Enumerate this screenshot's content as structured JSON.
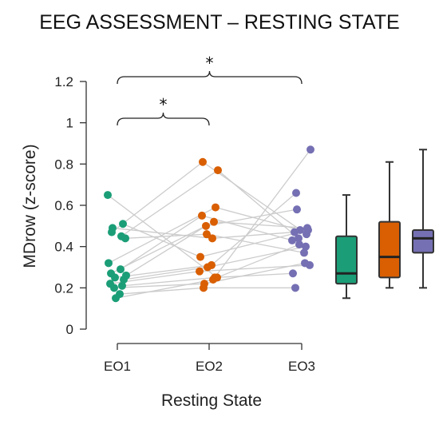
{
  "chart_data": {
    "type": "scatter",
    "title": "EEG ASSESSMENT – RESTING STATE",
    "xlabel": "Resting State",
    "ylabel": "MDrow (z-score)",
    "ylim": [
      0,
      1.2
    ],
    "yticks": [
      "0",
      "0.2",
      "0.4",
      "0.6",
      "0.8",
      "1",
      "1.2"
    ],
    "categories": [
      "EO1",
      "EO2",
      "EO3"
    ],
    "colors": [
      "#1b9e77",
      "#d95f02",
      "#7570b3"
    ],
    "line_color": "#cccccc",
    "significance_marker": "*",
    "significance": [
      {
        "between": [
          "EO1",
          "EO3"
        ],
        "marker": "*"
      },
      {
        "between": [
          "EO1",
          "EO2"
        ],
        "marker": "*"
      }
    ],
    "subjects": [
      [
        0.65,
        0.25,
        0.41
      ],
      [
        0.51,
        0.35,
        0.48
      ],
      [
        0.49,
        0.44,
        0.47
      ],
      [
        0.47,
        0.81,
        0.46
      ],
      [
        0.45,
        0.77,
        0.44
      ],
      [
        0.44,
        0.46,
        0.37
      ],
      [
        0.32,
        0.59,
        0.48
      ],
      [
        0.29,
        0.55,
        0.43
      ],
      [
        0.27,
        0.52,
        0.49
      ],
      [
        0.26,
        0.5,
        0.58
      ],
      [
        0.25,
        0.31,
        0.66
      ],
      [
        0.24,
        0.3,
        0.4
      ],
      [
        0.22,
        0.28,
        0.31
      ],
      [
        0.21,
        0.25,
        0.27
      ],
      [
        0.2,
        0.22,
        0.32
      ],
      [
        0.17,
        0.2,
        0.2
      ],
      [
        0.15,
        0.24,
        0.87
      ]
    ],
    "grid": false,
    "legend": "none"
  }
}
